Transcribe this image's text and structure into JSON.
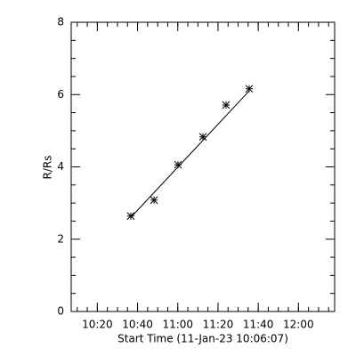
{
  "chart_data": {
    "type": "scatter",
    "x_label": "Start Time (11-Jan-23 10:06:07)",
    "y_label": "R/Rs",
    "x": [
      636.6,
      648.2,
      660.1,
      672.5,
      684.0,
      695.5
    ],
    "values": [
      2.64,
      3.08,
      4.06,
      4.83,
      5.71,
      6.16
    ],
    "marker": "asterisk",
    "color": "#000000",
    "fit": {
      "x": [
        636.6,
        695.5
      ],
      "values": [
        2.6,
        6.1
      ]
    },
    "xlim": [
      607,
      738
    ],
    "xticks": [
      {
        "value": 620,
        "label": "10:20"
      },
      {
        "value": 640,
        "label": "10:40"
      },
      {
        "value": 660,
        "label": "11:00"
      },
      {
        "value": 680,
        "label": "11:20"
      },
      {
        "value": 700,
        "label": "11:40"
      },
      {
        "value": 720,
        "label": "12:00"
      }
    ],
    "ylim": [
      0,
      8
    ],
    "yticks": [
      0,
      2,
      4,
      6,
      8
    ],
    "minor_per_major": 4,
    "grid": false
  }
}
